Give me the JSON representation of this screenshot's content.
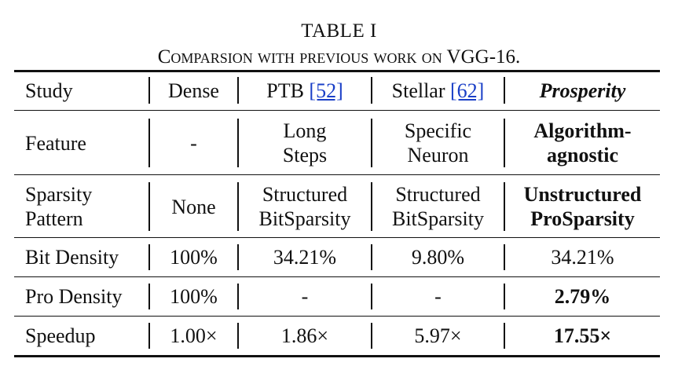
{
  "caption": {
    "line1": "TABLE I",
    "line2": "Comparsion with previous work on VGG-16."
  },
  "columns": {
    "study_label": "Study",
    "dense": "Dense",
    "ptb": "PTB",
    "ptb_ref": "[52]",
    "stellar": "Stellar",
    "stellar_ref": "[62]",
    "prosperity": "Prosperity"
  },
  "rows": {
    "feature": {
      "label": "Feature",
      "dense": "-",
      "ptb_line1": "Long",
      "ptb_line2": "Steps",
      "stellar_line1": "Specific",
      "stellar_line2": "Neuron",
      "prosperity_line1": "Algorithm-",
      "prosperity_line2": "agnostic"
    },
    "sparsity_pattern": {
      "label_line1": "Sparsity",
      "label_line2": "Pattern",
      "dense": "None",
      "ptb_line1": "Structured",
      "ptb_line2": "BitSparsity",
      "stellar_line1": "Structured",
      "stellar_line2": "BitSparsity",
      "prosperity_line1": "Unstructured",
      "prosperity_line2": "ProSparsity"
    },
    "bit_density": {
      "label": "Bit Density",
      "dense": "100%",
      "ptb": "34.21%",
      "stellar": "9.80%",
      "prosperity": "34.21%"
    },
    "pro_density": {
      "label": "Pro Density",
      "dense": "100%",
      "ptb": "-",
      "stellar": "-",
      "prosperity": "2.79%"
    },
    "speedup": {
      "label": "Speedup",
      "dense": "1.00×",
      "ptb": "1.86×",
      "stellar": "5.97×",
      "prosperity": "17.55×"
    }
  }
}
